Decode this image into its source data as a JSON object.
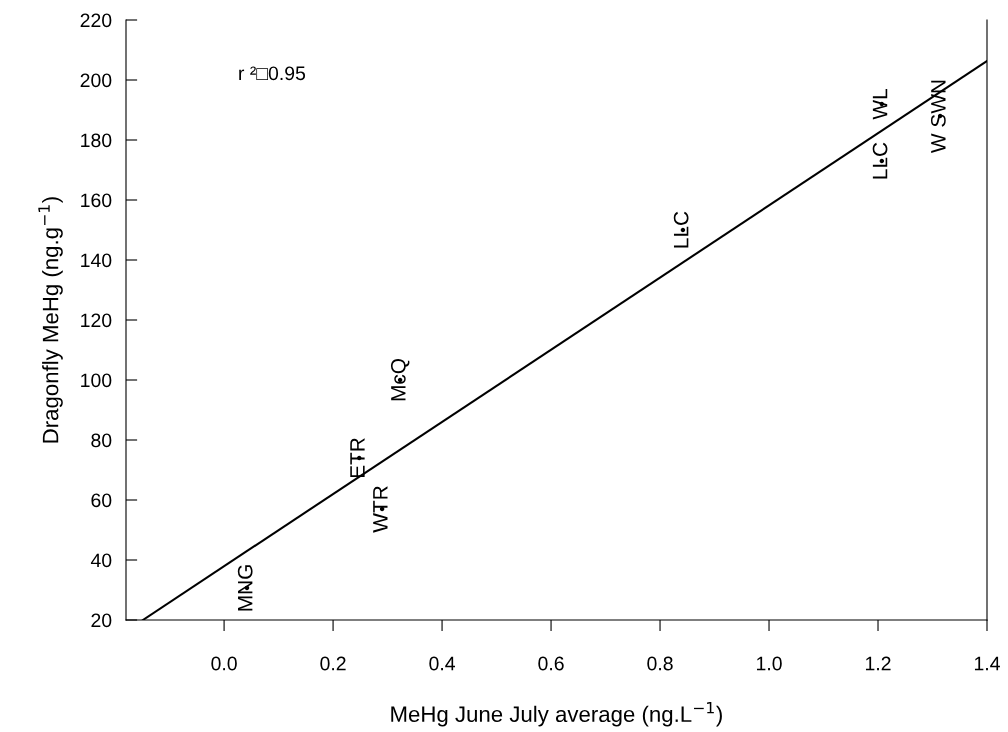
{
  "chart_data": {
    "type": "scatter",
    "xlabel": "MeHg June July average (ng.L$^{−1}$)",
    "ylabel": "Dragonfly MeHg (ng.g$^{−1}$)",
    "annotations": [
      "r ²□0.95"
    ],
    "series": [
      {
        "x": [
          0.042,
          0.248,
          0.29,
          0.323,
          0.842,
          1.207,
          1.207,
          1.314
        ],
        "values": [
          30.7,
          74,
          57,
          100,
          150,
          173,
          192,
          188
        ],
        "value_labels": [
          "MNG",
          "ETR",
          "WTR",
          "McQ",
          "LLC",
          "LLC",
          "WL",
          "W SWN"
        ],
        "color": "#000000"
      },
      {
        "type": "line",
        "x": [
          -0.149,
          1.4
        ],
        "values": [
          20,
          206.3
        ],
        "color": "#000000",
        "line_style": "solid"
      }
    ],
    "xlim": [
      -0.18,
      1.4
    ],
    "xticks": [
      {
        "value": 0,
        "label": "0.0"
      },
      0.2,
      0.4,
      0.6,
      0.8,
      {
        "value": 1,
        "label": "1.0"
      },
      1.2,
      1.4
    ],
    "ylim": [
      20,
      220
    ],
    "yticks": [
      20,
      40,
      60,
      80,
      100,
      120,
      140,
      160,
      180,
      200,
      220
    ],
    "grid": false,
    "legend": false
  }
}
